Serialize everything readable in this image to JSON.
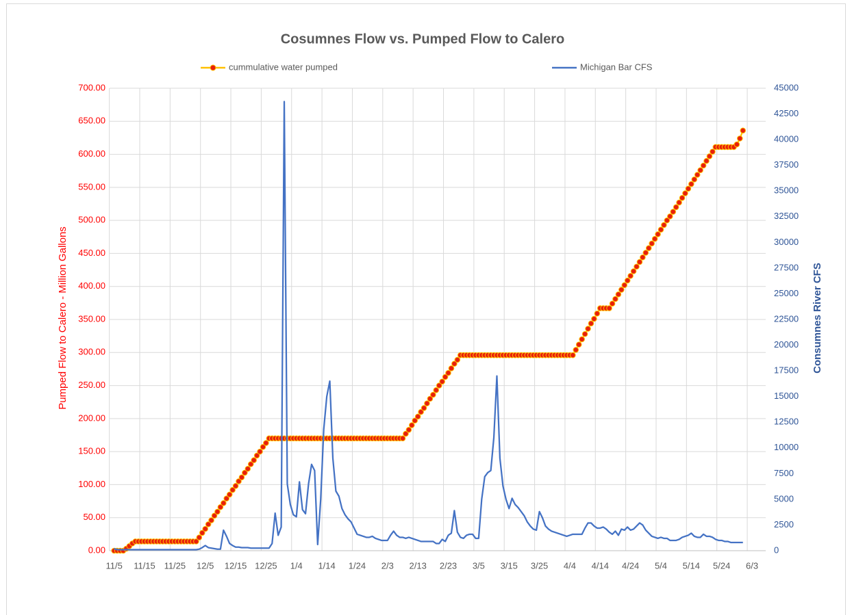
{
  "chart_data": {
    "type": "line",
    "title": "Cosumnes Flow vs. Pumped Flow to Calero",
    "ylabel": "Pumped Flow to Calero - Million Gallons",
    "y2label": "Consumnes River CFS",
    "legend": "top",
    "grid": true,
    "categories": [
      "11/5",
      null,
      null,
      null,
      null,
      null,
      null,
      null,
      null,
      null,
      "11/15",
      null,
      null,
      null,
      null,
      null,
      null,
      null,
      null,
      null,
      "11/25",
      null,
      null,
      null,
      null,
      null,
      null,
      null,
      null,
      null,
      "12/5",
      null,
      null,
      null,
      null,
      null,
      null,
      null,
      null,
      null,
      "12/15",
      null,
      null,
      null,
      null,
      null,
      null,
      null,
      null,
      null,
      "12/25",
      null,
      null,
      null,
      null,
      null,
      null,
      null,
      null,
      null,
      "1/4",
      null,
      null,
      null,
      null,
      null,
      null,
      null,
      null,
      null,
      "1/14",
      null,
      null,
      null,
      null,
      null,
      null,
      null,
      null,
      null,
      "1/24",
      null,
      null,
      null,
      null,
      null,
      null,
      null,
      null,
      null,
      "2/3",
      null,
      null,
      null,
      null,
      null,
      null,
      null,
      null,
      null,
      "2/13",
      null,
      null,
      null,
      null,
      null,
      null,
      null,
      null,
      null,
      "2/23",
      null,
      null,
      null,
      null,
      null,
      null,
      null,
      null,
      null,
      "3/5",
      null,
      null,
      null,
      null,
      null,
      null,
      null,
      null,
      null,
      "3/15",
      null,
      null,
      null,
      null,
      null,
      null,
      null,
      null,
      null,
      "3/25",
      null,
      null,
      null,
      null,
      null,
      null,
      null,
      null,
      null,
      "4/4",
      null,
      null,
      null,
      null,
      null,
      null,
      null,
      null,
      null,
      "4/14",
      null,
      null,
      null,
      null,
      null,
      null,
      null,
      null,
      null,
      "4/24",
      null,
      null,
      null,
      null,
      null,
      null,
      null,
      null,
      null,
      "5/4",
      null,
      null,
      null,
      null,
      null,
      null,
      null,
      null,
      null,
      "5/14",
      null,
      null,
      null,
      null,
      null,
      null,
      null,
      null,
      null,
      "5/24",
      null,
      null,
      null,
      null,
      null,
      null,
      null,
      null,
      null,
      "6/3"
    ],
    "series": [
      {
        "name": "cummulative water pumped",
        "color": "#ffc000",
        "marker_color": "#e8200c",
        "axis": "y",
        "values": [
          0,
          0,
          0,
          0,
          3,
          7,
          11,
          14,
          14,
          14,
          14,
          14,
          14,
          14,
          14,
          14,
          14,
          14,
          14,
          14,
          14,
          14,
          14,
          14,
          14,
          14,
          14,
          14,
          20,
          27,
          33,
          40,
          46,
          53,
          59,
          66,
          72,
          79,
          85,
          92,
          98,
          105,
          111,
          118,
          124,
          131,
          137,
          144,
          150,
          157,
          163,
          170,
          170,
          170,
          170,
          170,
          170,
          170,
          170,
          170,
          170,
          170,
          170,
          170,
          170,
          170,
          170,
          170,
          170,
          170,
          170,
          170,
          170,
          170,
          170,
          170,
          170,
          170,
          170,
          170,
          170,
          170,
          170,
          170,
          170,
          170,
          170,
          170,
          170,
          170,
          170,
          170,
          170,
          170,
          170,
          170,
          177,
          183,
          190,
          197,
          203,
          210,
          216,
          223,
          230,
          236,
          243,
          250,
          256,
          263,
          269,
          276,
          283,
          289,
          296,
          296,
          296,
          296,
          296,
          296,
          296,
          296,
          296,
          296,
          296,
          296,
          296,
          296,
          296,
          296,
          296,
          296,
          296,
          296,
          296,
          296,
          296,
          296,
          296,
          296,
          296,
          296,
          296,
          296,
          296,
          296,
          296,
          296,
          296,
          296,
          296,
          296,
          304,
          312,
          320,
          328,
          336,
          344,
          351,
          359,
          367,
          367,
          367,
          367,
          374,
          381,
          388,
          395,
          402,
          409,
          416,
          423,
          430,
          437,
          444,
          451,
          458,
          465,
          472,
          479,
          486,
          493,
          500,
          506,
          513,
          520,
          527,
          534,
          541,
          548,
          555,
          562,
          569,
          576,
          583,
          590,
          597,
          604,
          611,
          611,
          611,
          611,
          611,
          611,
          611,
          615,
          624,
          636,
          null,
          null,
          null
        ]
      },
      {
        "name": "Michigan Bar CFS",
        "color": "#4472c4",
        "axis": "y2",
        "values": [
          200,
          100,
          100,
          100,
          100,
          100,
          100,
          100,
          100,
          100,
          100,
          100,
          100,
          100,
          100,
          100,
          100,
          100,
          100,
          100,
          100,
          100,
          100,
          100,
          100,
          100,
          100,
          100,
          150,
          300,
          500,
          300,
          250,
          200,
          150,
          150,
          2000,
          1400,
          700,
          500,
          350,
          350,
          300,
          300,
          300,
          250,
          250,
          250,
          250,
          250,
          250,
          250,
          700,
          3650,
          1500,
          2300,
          43700,
          6500,
          4500,
          3500,
          3300,
          6700,
          4000,
          3600,
          6500,
          8400,
          7800,
          600,
          5000,
          11800,
          15000,
          16500,
          9000,
          5800,
          5300,
          4100,
          3500,
          3100,
          2800,
          2200,
          1600,
          1500,
          1400,
          1300,
          1300,
          1400,
          1200,
          1100,
          1000,
          1000,
          1000,
          1500,
          1900,
          1500,
          1300,
          1300,
          1200,
          1300,
          1200,
          1100,
          1000,
          900,
          900,
          900,
          900,
          900,
          700,
          700,
          1100,
          900,
          1500,
          1700,
          3900,
          1800,
          1300,
          1200,
          1500,
          1600,
          1600,
          1200,
          1200,
          5000,
          7200,
          7600,
          7800,
          11000,
          17000,
          9000,
          6300,
          5000,
          4100,
          5100,
          4500,
          4200,
          3800,
          3400,
          2800,
          2400,
          2100,
          2000,
          3800,
          3200,
          2400,
          2100,
          1900,
          1800,
          1700,
          1600,
          1500,
          1400,
          1500,
          1600,
          1600,
          1600,
          1600,
          2200,
          2700,
          2700,
          2400,
          2200,
          2200,
          2300,
          2100,
          1800,
          1600,
          1900,
          1500,
          2100,
          2000,
          2300,
          2000,
          2100,
          2400,
          2700,
          2500,
          2000,
          1700,
          1400,
          1300,
          1200,
          1300,
          1200,
          1200,
          1000,
          1000,
          1000,
          1100,
          1300,
          1400,
          1500,
          1700,
          1400,
          1300,
          1300,
          1600,
          1400,
          1400,
          1300,
          1100,
          1000,
          1000,
          900,
          900,
          800,
          800,
          800,
          800,
          800,
          null,
          null,
          null
        ]
      }
    ],
    "ylim": [
      0,
      700
    ],
    "yticks": [
      {
        "value": 0,
        "label": "0.00"
      },
      {
        "value": 50,
        "label": "50.00"
      },
      {
        "value": 100,
        "label": "100.00"
      },
      {
        "value": 150,
        "label": "150.00"
      },
      {
        "value": 200,
        "label": "200.00"
      },
      {
        "value": 250,
        "label": "250.00"
      },
      {
        "value": 300,
        "label": "300.00"
      },
      {
        "value": 350,
        "label": "350.00"
      },
      {
        "value": 400,
        "label": "400.00"
      },
      {
        "value": 450,
        "label": "450.00"
      },
      {
        "value": 500,
        "label": "500.00"
      },
      {
        "value": 550,
        "label": "550.00"
      },
      {
        "value": 600,
        "label": "600.00"
      },
      {
        "value": 650,
        "label": "650.00"
      },
      {
        "value": 700,
        "label": "700.00"
      }
    ],
    "y2lim": [
      0,
      45000
    ],
    "y2ticks": [
      0,
      2500,
      5000,
      7500,
      10000,
      12500,
      15000,
      17500,
      20000,
      22500,
      25000,
      27500,
      30000,
      32500,
      35000,
      37500,
      40000,
      42500,
      45000
    ]
  }
}
